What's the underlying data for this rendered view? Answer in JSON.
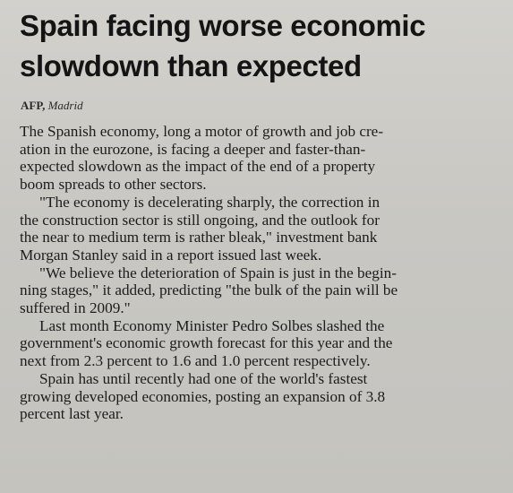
{
  "article": {
    "headline_line1": "Spain facing worse economic",
    "headline_line2": "slowdown than expected",
    "dateline_source": "AFP,",
    "dateline_location": "Madrid",
    "paragraphs": [
      [
        "The Spanish economy, long a motor of growth and job cre-",
        "ation in the eurozone, is facing a deeper and faster-than-",
        "expected slowdown as the impact of the end of a property",
        "boom spreads to other sectors."
      ],
      [
        "\"The economy is decelerating sharply, the correction in",
        "the construction sector is still ongoing, and the outlook for",
        "the near to medium term is rather bleak,\" investment bank",
        "Morgan Stanley said in a report issued last week."
      ],
      [
        "\"We believe the deterioration of Spain is just in the begin-",
        "ning stages,\" it added, predicting \"the bulk of the pain will be",
        "suffered in 2009.\""
      ],
      [
        "Last month Economy Minister Pedro Solbes slashed the",
        "government's economic growth forecast for this year and the",
        "next from 2.3 percent to 1.6 and 1.0 percent respectively."
      ],
      [
        "Spain has until recently had one of the world's fastest",
        "growing developed economies, posting an expansion of 3.8",
        "percent last year."
      ]
    ]
  }
}
